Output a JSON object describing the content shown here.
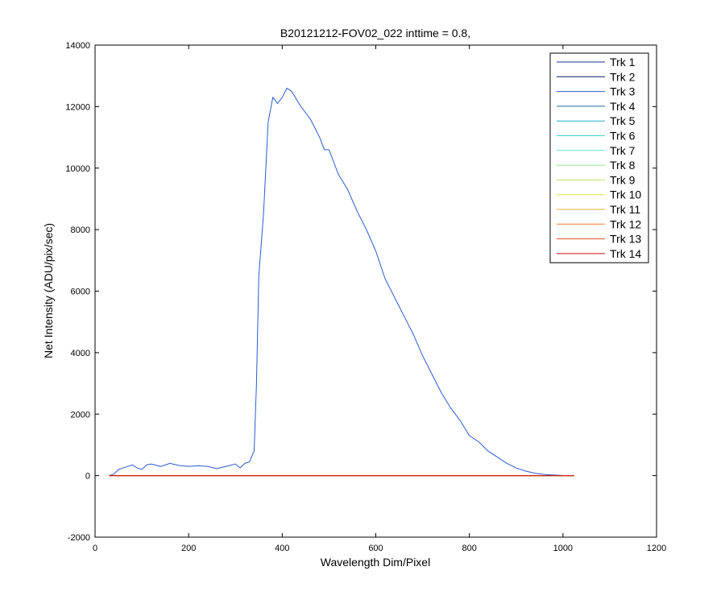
{
  "chart_data": {
    "type": "line",
    "title": "B20121212-FOV02_022 inttime = 0.8,",
    "x_label": "Wavelength Dim/Pixel",
    "y_label": "Net Intensity (ADU/pix/sec)",
    "xlim": [
      0,
      1200
    ],
    "xticks": [
      0,
      200,
      400,
      600,
      800,
      1000,
      1200
    ],
    "ylim": [
      -2000,
      14000
    ],
    "yticks": [
      -2000,
      0,
      2000,
      4000,
      6000,
      8000,
      10000,
      12000,
      14000
    ],
    "grid": false,
    "legend": "top-right",
    "x": [
      30,
      40,
      50,
      60,
      70,
      80,
      90,
      100,
      110,
      120,
      140,
      160,
      180,
      200,
      220,
      240,
      260,
      280,
      300,
      310,
      320,
      330,
      340,
      345,
      350,
      360,
      370,
      380,
      390,
      400,
      410,
      420,
      440,
      460,
      480,
      490,
      500,
      520,
      540,
      560,
      580,
      600,
      620,
      640,
      660,
      680,
      700,
      720,
      740,
      760,
      780,
      800,
      820,
      840,
      860,
      880,
      900,
      920,
      940,
      960,
      980,
      1000,
      1024
    ],
    "series": [
      {
        "name": "Trk 1",
        "color": "#1a2f9a",
        "values": [
          0,
          0,
          0,
          0,
          0,
          0,
          0,
          0,
          0,
          0,
          0,
          0,
          0,
          0,
          0,
          0,
          0,
          0,
          0,
          0,
          0,
          0,
          0,
          0,
          0,
          0,
          0,
          0,
          0,
          0,
          0,
          0,
          0,
          0,
          0,
          0,
          0,
          0,
          0,
          0,
          0,
          0,
          0,
          0,
          0,
          0,
          0,
          0,
          0,
          0,
          0,
          0,
          0,
          0,
          0,
          0,
          0,
          0,
          0,
          0,
          0,
          0,
          0
        ]
      },
      {
        "name": "Trk 2",
        "color": "#0a1a70",
        "values": [
          0,
          0,
          0,
          0,
          0,
          0,
          0,
          0,
          0,
          0,
          0,
          0,
          0,
          0,
          0,
          0,
          0,
          0,
          0,
          0,
          0,
          0,
          0,
          0,
          0,
          0,
          0,
          0,
          0,
          0,
          0,
          0,
          0,
          0,
          0,
          0,
          0,
          0,
          0,
          0,
          0,
          0,
          0,
          0,
          0,
          0,
          0,
          0,
          0,
          0,
          0,
          0,
          0,
          0,
          0,
          0,
          0,
          0,
          0,
          0,
          0,
          0,
          0
        ]
      },
      {
        "name": "Trk 3",
        "color": "#2a5bd0",
        "values": [
          0,
          50,
          200,
          250,
          300,
          350,
          250,
          200,
          350,
          380,
          300,
          400,
          330,
          300,
          320,
          300,
          230,
          300,
          380,
          250,
          400,
          450,
          800,
          3000,
          6500,
          8500,
          11500,
          12300,
          12100,
          12300,
          12600,
          12500,
          12000,
          11600,
          11000,
          10600,
          10600,
          9800,
          9300,
          8600,
          8000,
          7300,
          6400,
          5800,
          5200,
          4600,
          3900,
          3300,
          2700,
          2200,
          1800,
          1300,
          1100,
          800,
          600,
          400,
          250,
          150,
          80,
          40,
          20,
          5,
          0
        ]
      },
      {
        "name": "Trk 4",
        "color": "#1a70a0",
        "values": [
          0,
          0,
          0,
          0,
          0,
          0,
          0,
          0,
          0,
          0,
          0,
          0,
          0,
          0,
          0,
          0,
          0,
          0,
          0,
          0,
          0,
          0,
          0,
          0,
          0,
          0,
          0,
          0,
          0,
          0,
          0,
          0,
          0,
          0,
          0,
          0,
          0,
          0,
          0,
          0,
          0,
          0,
          0,
          0,
          0,
          0,
          0,
          0,
          0,
          0,
          0,
          0,
          0,
          0,
          0,
          0,
          0,
          0,
          0,
          0,
          0,
          0,
          0
        ]
      },
      {
        "name": "Trk 5",
        "color": "#20b0c0",
        "values": [
          0,
          0,
          0,
          0,
          0,
          0,
          0,
          0,
          0,
          0,
          0,
          0,
          0,
          0,
          0,
          0,
          0,
          0,
          0,
          0,
          0,
          0,
          0,
          0,
          0,
          0,
          0,
          0,
          0,
          0,
          0,
          0,
          0,
          0,
          0,
          0,
          0,
          0,
          0,
          0,
          0,
          0,
          0,
          0,
          0,
          0,
          0,
          0,
          0,
          0,
          0,
          0,
          0,
          0,
          0,
          0,
          0,
          0,
          0,
          0,
          0,
          0,
          0
        ]
      },
      {
        "name": "Trk 6",
        "color": "#40d0d0",
        "values": [
          0,
          0,
          0,
          0,
          0,
          0,
          0,
          0,
          0,
          0,
          0,
          0,
          0,
          0,
          0,
          0,
          0,
          0,
          0,
          0,
          0,
          0,
          0,
          0,
          0,
          0,
          0,
          0,
          0,
          0,
          0,
          0,
          0,
          0,
          0,
          0,
          0,
          0,
          0,
          0,
          0,
          0,
          0,
          0,
          0,
          0,
          0,
          0,
          0,
          0,
          0,
          0,
          0,
          0,
          0,
          0,
          0,
          0,
          0,
          0,
          0,
          0,
          0
        ]
      },
      {
        "name": "Trk 7",
        "color": "#60e0d0",
        "values": [
          0,
          0,
          0,
          0,
          0,
          0,
          0,
          0,
          0,
          0,
          0,
          0,
          0,
          0,
          0,
          0,
          0,
          0,
          0,
          0,
          0,
          0,
          0,
          0,
          0,
          0,
          0,
          0,
          0,
          0,
          0,
          0,
          0,
          0,
          0,
          0,
          0,
          0,
          0,
          0,
          0,
          0,
          0,
          0,
          0,
          0,
          0,
          0,
          0,
          0,
          0,
          0,
          0,
          0,
          0,
          0,
          0,
          0,
          0,
          0,
          0,
          0,
          0
        ]
      },
      {
        "name": "Trk 8",
        "color": "#90e090",
        "values": [
          0,
          0,
          0,
          0,
          0,
          0,
          0,
          0,
          0,
          0,
          0,
          0,
          0,
          0,
          0,
          0,
          0,
          0,
          0,
          0,
          0,
          0,
          0,
          0,
          0,
          0,
          0,
          0,
          0,
          0,
          0,
          0,
          0,
          0,
          0,
          0,
          0,
          0,
          0,
          0,
          0,
          0,
          0,
          0,
          0,
          0,
          0,
          0,
          0,
          0,
          0,
          0,
          0,
          0,
          0,
          0,
          0,
          0,
          0,
          0,
          0,
          0,
          0
        ]
      },
      {
        "name": "Trk 9",
        "color": "#c0e060",
        "values": [
          0,
          0,
          0,
          0,
          0,
          0,
          0,
          0,
          0,
          0,
          0,
          0,
          0,
          0,
          0,
          0,
          0,
          0,
          0,
          0,
          0,
          0,
          0,
          0,
          0,
          0,
          0,
          0,
          0,
          0,
          0,
          0,
          0,
          0,
          0,
          0,
          0,
          0,
          0,
          0,
          0,
          0,
          0,
          0,
          0,
          0,
          0,
          0,
          0,
          0,
          0,
          0,
          0,
          0,
          0,
          0,
          0,
          0,
          0,
          0,
          0,
          0,
          0
        ]
      },
      {
        "name": "Trk 10",
        "color": "#e0e040",
        "values": [
          0,
          0,
          0,
          0,
          0,
          0,
          0,
          0,
          0,
          0,
          0,
          0,
          0,
          0,
          0,
          0,
          0,
          0,
          0,
          0,
          0,
          0,
          0,
          0,
          0,
          0,
          0,
          0,
          0,
          0,
          0,
          0,
          0,
          0,
          0,
          0,
          0,
          0,
          0,
          0,
          0,
          0,
          0,
          0,
          0,
          0,
          0,
          0,
          0,
          0,
          0,
          0,
          0,
          0,
          0,
          0,
          0,
          0,
          0,
          0,
          0,
          0,
          0
        ]
      },
      {
        "name": "Trk 11",
        "color": "#e0b030",
        "values": [
          0,
          0,
          0,
          0,
          0,
          0,
          0,
          0,
          0,
          0,
          0,
          0,
          0,
          0,
          0,
          0,
          0,
          0,
          0,
          0,
          0,
          0,
          0,
          0,
          0,
          0,
          0,
          0,
          0,
          0,
          0,
          0,
          0,
          0,
          0,
          0,
          0,
          0,
          0,
          0,
          0,
          0,
          0,
          0,
          0,
          0,
          0,
          0,
          0,
          0,
          0,
          0,
          0,
          0,
          0,
          0,
          0,
          0,
          0,
          0,
          0,
          0,
          0
        ]
      },
      {
        "name": "Trk 12",
        "color": "#f08030",
        "values": [
          0,
          0,
          0,
          0,
          0,
          0,
          0,
          0,
          0,
          0,
          0,
          0,
          0,
          0,
          0,
          0,
          0,
          0,
          0,
          0,
          0,
          0,
          0,
          0,
          0,
          0,
          0,
          0,
          0,
          0,
          0,
          0,
          0,
          0,
          0,
          0,
          0,
          0,
          0,
          0,
          0,
          0,
          0,
          0,
          0,
          0,
          0,
          0,
          0,
          0,
          0,
          0,
          0,
          0,
          0,
          0,
          0,
          0,
          0,
          0,
          0,
          0,
          0
        ]
      },
      {
        "name": "Trk 13",
        "color": "#e05020",
        "values": [
          0,
          0,
          0,
          0,
          0,
          0,
          0,
          0,
          0,
          0,
          0,
          0,
          0,
          0,
          0,
          0,
          0,
          0,
          0,
          0,
          0,
          0,
          0,
          0,
          0,
          0,
          0,
          0,
          0,
          0,
          0,
          0,
          0,
          0,
          0,
          0,
          0,
          0,
          0,
          0,
          0,
          0,
          0,
          0,
          0,
          0,
          0,
          0,
          0,
          0,
          0,
          0,
          0,
          0,
          0,
          0,
          0,
          0,
          0,
          0,
          0,
          0,
          0
        ]
      },
      {
        "name": "Trk 14",
        "color": "#d01010",
        "values": [
          0,
          0,
          0,
          0,
          0,
          0,
          0,
          0,
          0,
          0,
          0,
          0,
          0,
          0,
          0,
          0,
          0,
          0,
          0,
          0,
          0,
          0,
          0,
          0,
          0,
          0,
          0,
          0,
          0,
          0,
          0,
          0,
          0,
          0,
          0,
          0,
          0,
          0,
          0,
          0,
          0,
          0,
          0,
          0,
          0,
          0,
          0,
          0,
          0,
          0,
          0,
          0,
          0,
          0,
          0,
          0,
          0,
          0,
          0,
          0,
          0,
          0,
          0
        ]
      }
    ]
  }
}
